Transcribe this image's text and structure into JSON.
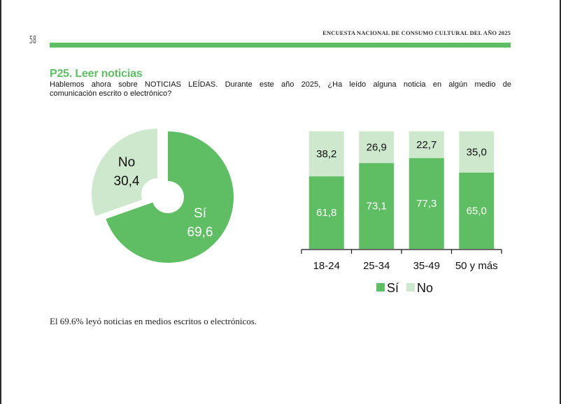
{
  "page": {
    "page_number": "58",
    "running_head": "ENCUESTA NACIONAL DE CONSUMO CULTURAL DEL AÑO 2025",
    "accent_color": "#5fbd63",
    "light_color": "#cde8cc"
  },
  "question": {
    "title": "P25. Leer noticias",
    "text_line1": "Hablemos ahora sobre NOTICIAS LEÍDAS.  Durante este año 2025, ¿Ha leído alguna noticia en algún medio de",
    "text_line2": "comunicación escrito o electrónico?"
  },
  "summary": "El 69.6% leyó noticias en medios escritos o electrónicos.",
  "chart_data": [
    {
      "type": "pie",
      "variant": "donut-exploded",
      "slices": [
        {
          "label": "Sí",
          "value": 69.6,
          "value_text": "69,6",
          "color": "#5fbd63"
        },
        {
          "label": "No",
          "value": 30.4,
          "value_text": "30,4",
          "color": "#cde8cc"
        }
      ]
    },
    {
      "type": "bar",
      "stacked": true,
      "percent_stacked": true,
      "categories": [
        "18-24",
        "25-34",
        "35-49",
        "50 y más"
      ],
      "series": [
        {
          "name": "Sí",
          "values": [
            61.8,
            73.1,
            77.3,
            65.0
          ],
          "value_texts": [
            "61,8",
            "73,1",
            "77,3",
            "65,0"
          ],
          "color": "#5fbd63"
        },
        {
          "name": "No",
          "values": [
            38.2,
            26.9,
            22.7,
            35.0
          ],
          "value_texts": [
            "38,2",
            "26,9",
            "22,7",
            "35,0"
          ],
          "color": "#cde8cc"
        }
      ],
      "ylim": [
        0,
        100
      ],
      "grid": false,
      "legend": {
        "position": "bottom",
        "entries": [
          "Sí",
          "No"
        ]
      }
    }
  ]
}
